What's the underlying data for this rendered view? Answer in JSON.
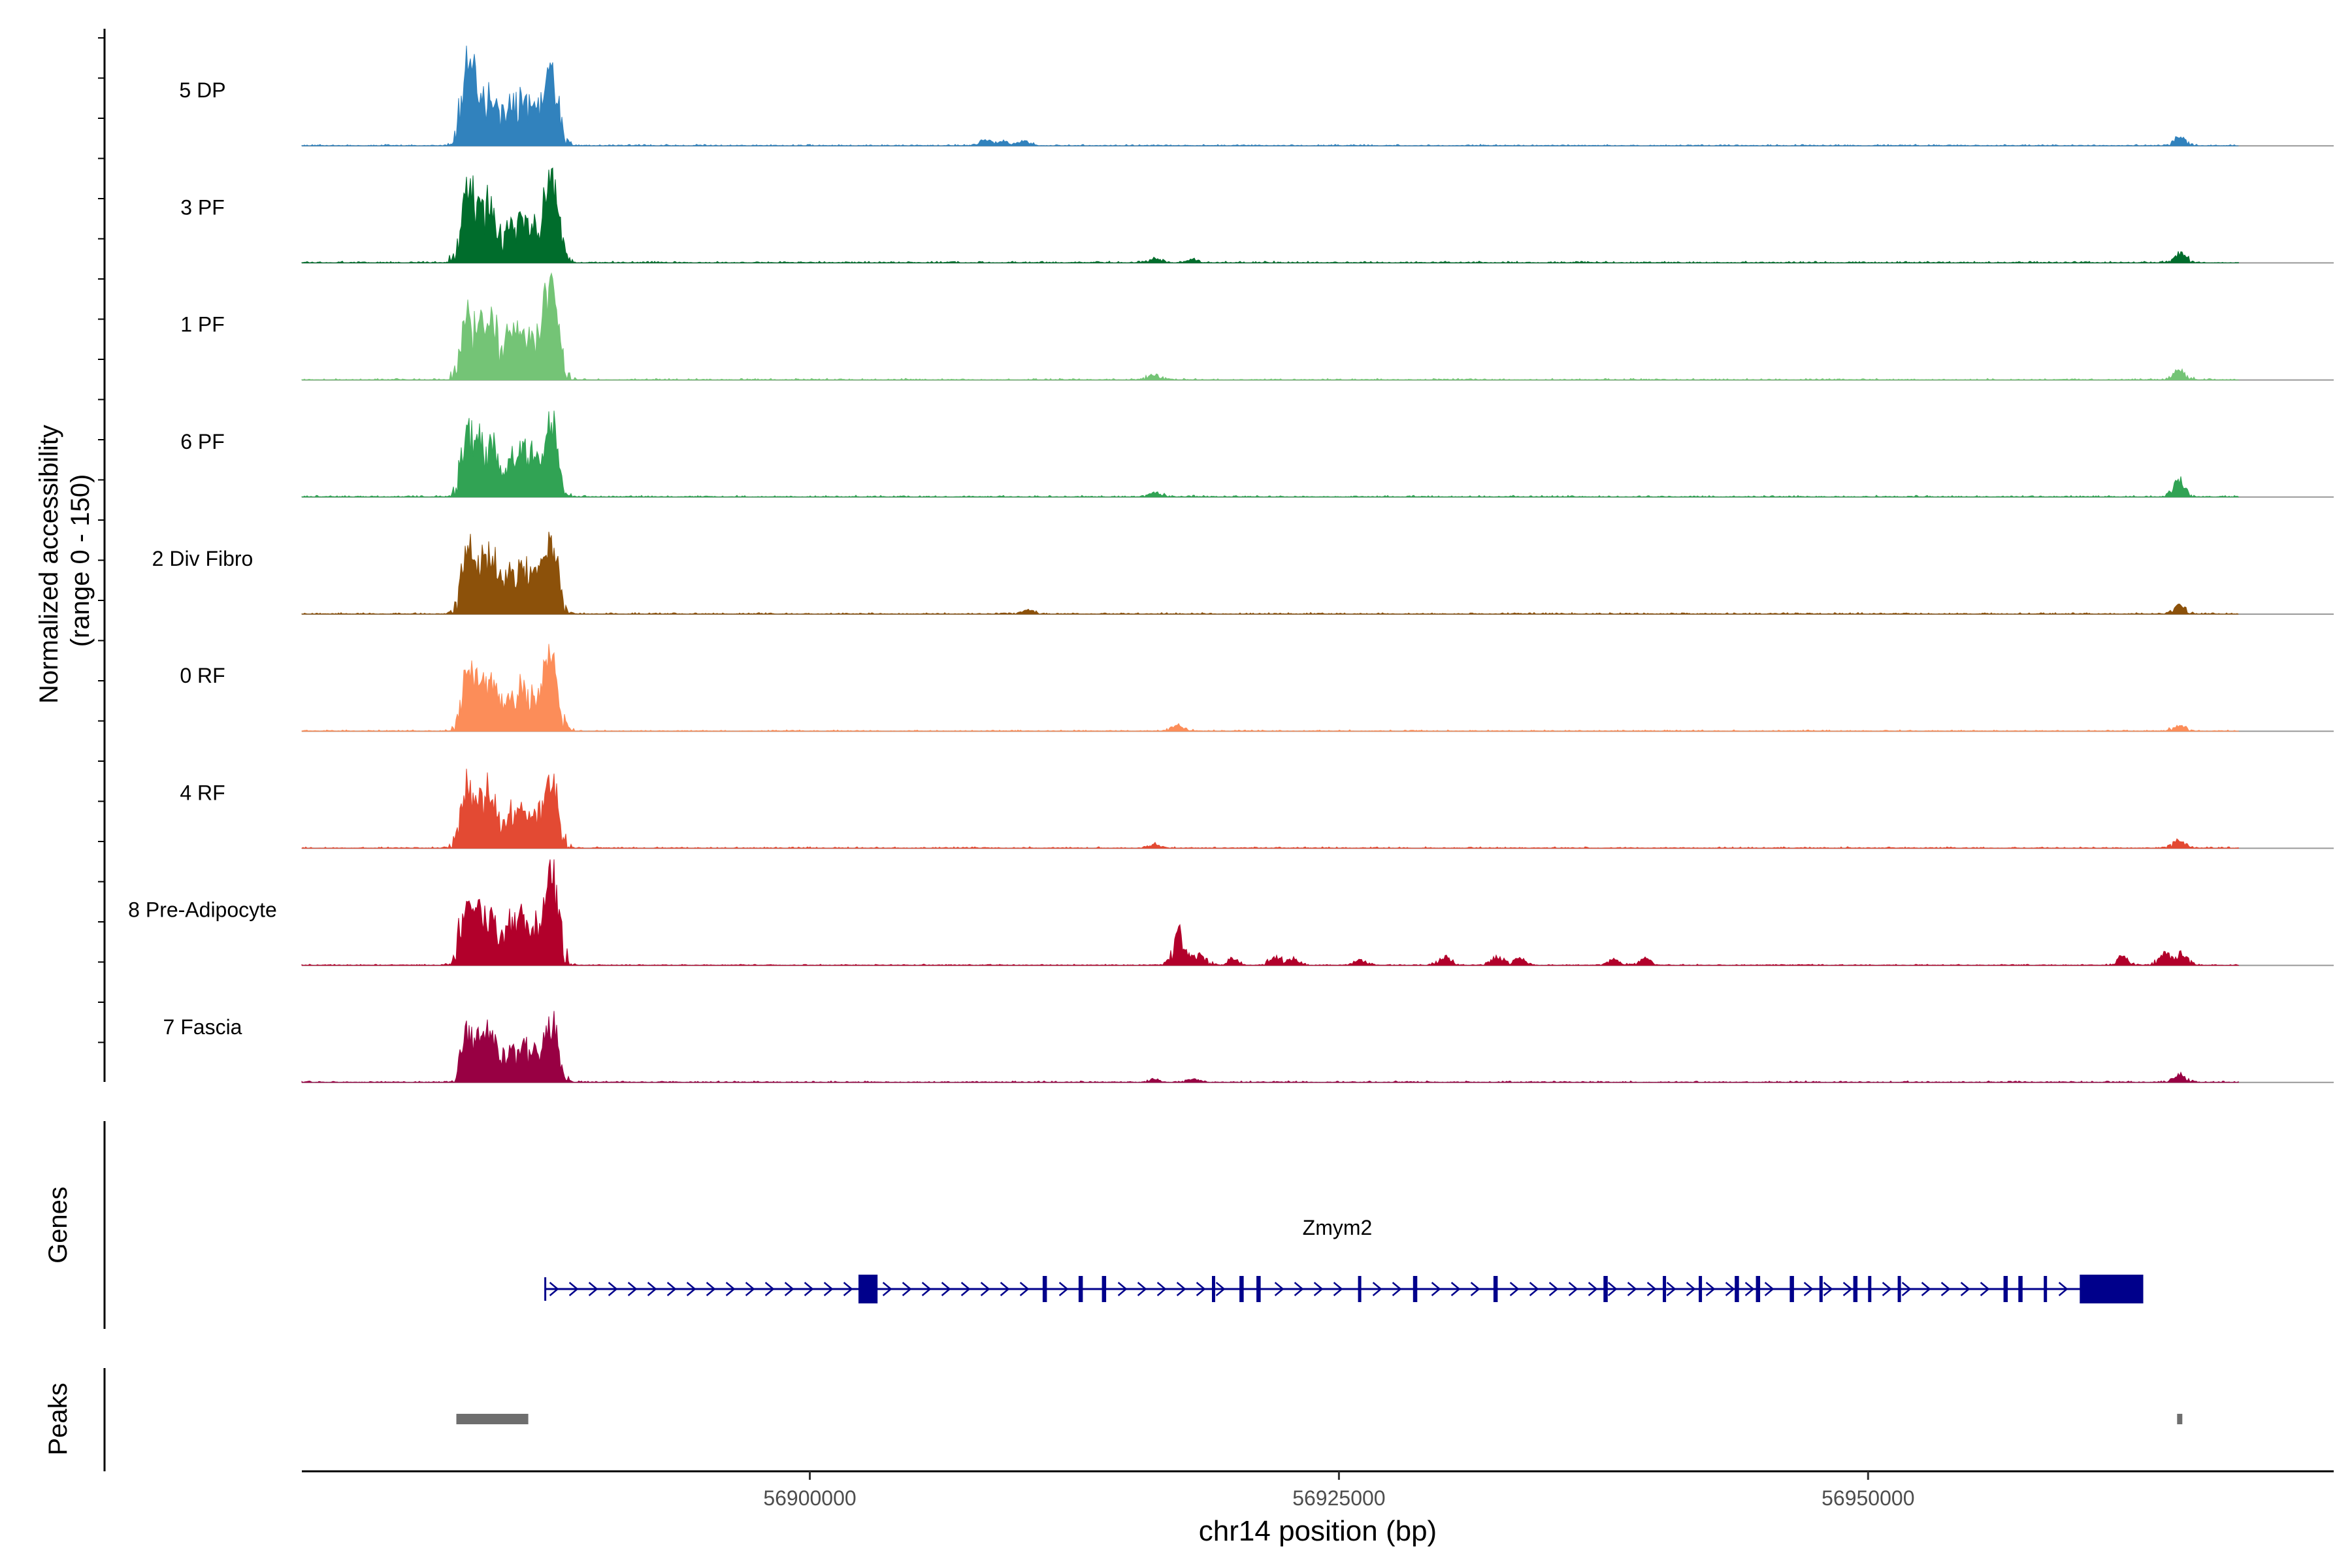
{
  "chart_data": {
    "type": "area",
    "title": "",
    "ylabel_line1": "Normalized accessibility",
    "ylabel_line2": "(range 0 - 150)",
    "xlabel": "chr14 position (bp)",
    "xlim": [
      56876000,
      56972000
    ],
    "ylim": [
      0,
      150
    ],
    "xticks": [
      56900000,
      56925000,
      56950000
    ],
    "xtick_labels": [
      "56900000",
      "56925000",
      "56950000"
    ],
    "tracks": [
      {
        "name": "5 DP",
        "color": "#3182bd",
        "peaks": [
          [
            56883800,
            0.95
          ],
          [
            56884400,
            0.62
          ],
          [
            56885000,
            0.58
          ],
          [
            56885800,
            0.42
          ],
          [
            56886400,
            0.5
          ],
          [
            56887000,
            0.38
          ],
          [
            56887600,
            0.55
          ],
          [
            56887900,
            0.62
          ],
          [
            56908300,
            0.07
          ],
          [
            56909200,
            0.05
          ],
          [
            56910100,
            0.06
          ],
          [
            56964700,
            0.1
          ]
        ],
        "noise": 0.015
      },
      {
        "name": "3 PF",
        "color": "#006d2c",
        "peaks": [
          [
            56883800,
            0.95
          ],
          [
            56884400,
            0.6
          ],
          [
            56885000,
            0.62
          ],
          [
            56885800,
            0.4
          ],
          [
            56886400,
            0.48
          ],
          [
            56887000,
            0.35
          ],
          [
            56887600,
            0.6
          ],
          [
            56887900,
            0.68
          ],
          [
            56916300,
            0.05
          ],
          [
            56918100,
            0.04
          ],
          [
            56964700,
            0.12
          ]
        ],
        "noise": 0.018
      },
      {
        "name": "1 PF",
        "color": "#74c476",
        "peaks": [
          [
            56883800,
            0.72
          ],
          [
            56884400,
            0.58
          ],
          [
            56885000,
            0.72
          ],
          [
            56885800,
            0.48
          ],
          [
            56886400,
            0.52
          ],
          [
            56887000,
            0.42
          ],
          [
            56887600,
            0.7
          ],
          [
            56887900,
            0.78
          ],
          [
            56916300,
            0.07
          ],
          [
            56964700,
            0.12
          ]
        ],
        "noise": 0.016
      },
      {
        "name": "6 PF",
        "color": "#31a354",
        "peaks": [
          [
            56883800,
            0.72
          ],
          [
            56884400,
            0.6
          ],
          [
            56885000,
            0.7
          ],
          [
            56885800,
            0.38
          ],
          [
            56886400,
            0.52
          ],
          [
            56887000,
            0.36
          ],
          [
            56887600,
            0.58
          ],
          [
            56887900,
            0.62
          ],
          [
            56916300,
            0.06
          ],
          [
            56964700,
            0.2
          ]
        ],
        "noise": 0.018
      },
      {
        "name": "2 Div Fibro",
        "color": "#8c510a",
        "peaks": [
          [
            56883800,
            0.8
          ],
          [
            56884400,
            0.55
          ],
          [
            56885000,
            0.68
          ],
          [
            56885800,
            0.42
          ],
          [
            56886400,
            0.48
          ],
          [
            56887000,
            0.38
          ],
          [
            56887600,
            0.55
          ],
          [
            56887900,
            0.65
          ],
          [
            56910300,
            0.05
          ],
          [
            56964700,
            0.1
          ]
        ],
        "noise": 0.016
      },
      {
        "name": "0 RF",
        "color": "#fc8d59",
        "peaks": [
          [
            56883800,
            0.65
          ],
          [
            56884400,
            0.55
          ],
          [
            56885000,
            0.58
          ],
          [
            56885800,
            0.38
          ],
          [
            56886400,
            0.46
          ],
          [
            56887000,
            0.36
          ],
          [
            56887600,
            0.56
          ],
          [
            56887900,
            0.62
          ],
          [
            56917400,
            0.08
          ],
          [
            56964700,
            0.07
          ]
        ],
        "noise": 0.014
      },
      {
        "name": "4 RF",
        "color": "#e34a33",
        "peaks": [
          [
            56883800,
            0.78
          ],
          [
            56884400,
            0.5
          ],
          [
            56885000,
            0.55
          ],
          [
            56885800,
            0.34
          ],
          [
            56886400,
            0.4
          ],
          [
            56887000,
            0.32
          ],
          [
            56887600,
            0.48
          ],
          [
            56887900,
            0.55
          ],
          [
            56916300,
            0.05
          ],
          [
            56964700,
            0.1
          ]
        ],
        "noise": 0.016
      },
      {
        "name": "8 Pre-Adipocyte",
        "color": "#b2002b",
        "peaks": [
          [
            56883800,
            0.8
          ],
          [
            56884400,
            0.55
          ],
          [
            56885000,
            0.5
          ],
          [
            56885800,
            0.48
          ],
          [
            56886400,
            0.54
          ],
          [
            56887000,
            0.4
          ],
          [
            56887600,
            0.62
          ],
          [
            56887900,
            0.8
          ],
          [
            56917400,
            0.38
          ],
          [
            56917900,
            0.1
          ],
          [
            56918500,
            0.1
          ],
          [
            56920000,
            0.08
          ],
          [
            56922000,
            0.1
          ],
          [
            56922800,
            0.08
          ],
          [
            56926000,
            0.06
          ],
          [
            56930000,
            0.1
          ],
          [
            56932500,
            0.1
          ],
          [
            56933500,
            0.08
          ],
          [
            56938000,
            0.08
          ],
          [
            56939500,
            0.08
          ],
          [
            56962000,
            0.1
          ],
          [
            56964000,
            0.14
          ],
          [
            56964800,
            0.14
          ]
        ],
        "noise": 0.012
      },
      {
        "name": "7 Fascia",
        "color": "#980043",
        "peaks": [
          [
            56883800,
            0.58
          ],
          [
            56884400,
            0.48
          ],
          [
            56885000,
            0.55
          ],
          [
            56885800,
            0.35
          ],
          [
            56886400,
            0.42
          ],
          [
            56887000,
            0.3
          ],
          [
            56887600,
            0.4
          ],
          [
            56887900,
            0.45
          ],
          [
            56916300,
            0.04
          ],
          [
            56918100,
            0.04
          ],
          [
            56964700,
            0.1
          ]
        ],
        "noise": 0.016
      }
    ],
    "genes_label": "Genes",
    "gene": {
      "name": "Zmym2",
      "color": "#00008b",
      "start": 56887500,
      "end": 56963000,
      "strand": "+",
      "exons": [
        [
          56902300,
          56903200
        ],
        [
          56911000,
          56911200
        ],
        [
          56912700,
          56912900
        ],
        [
          56913800,
          56914000
        ],
        [
          56919000,
          56919100
        ],
        [
          56920300,
          56920500
        ],
        [
          56921100,
          56921300
        ],
        [
          56925900,
          56926000
        ],
        [
          56928500,
          56928700
        ],
        [
          56932300,
          56932500
        ],
        [
          56937500,
          56937700
        ],
        [
          56940300,
          56940400
        ],
        [
          56942000,
          56942100
        ],
        [
          56943700,
          56943900
        ],
        [
          56944700,
          56944900
        ],
        [
          56946300,
          56946500
        ],
        [
          56947700,
          56947800
        ],
        [
          56949300,
          56949500
        ],
        [
          56950000,
          56950100
        ],
        [
          56951400,
          56951500
        ],
        [
          56956400,
          56956600
        ],
        [
          56957100,
          56957300
        ],
        [
          56958300,
          56958400
        ],
        [
          56960000,
          56963000
        ]
      ]
    },
    "peaks_label": "Peaks",
    "peak_regions": [
      [
        56883300,
        56886700
      ],
      [
        56964600,
        56964800
      ]
    ]
  }
}
